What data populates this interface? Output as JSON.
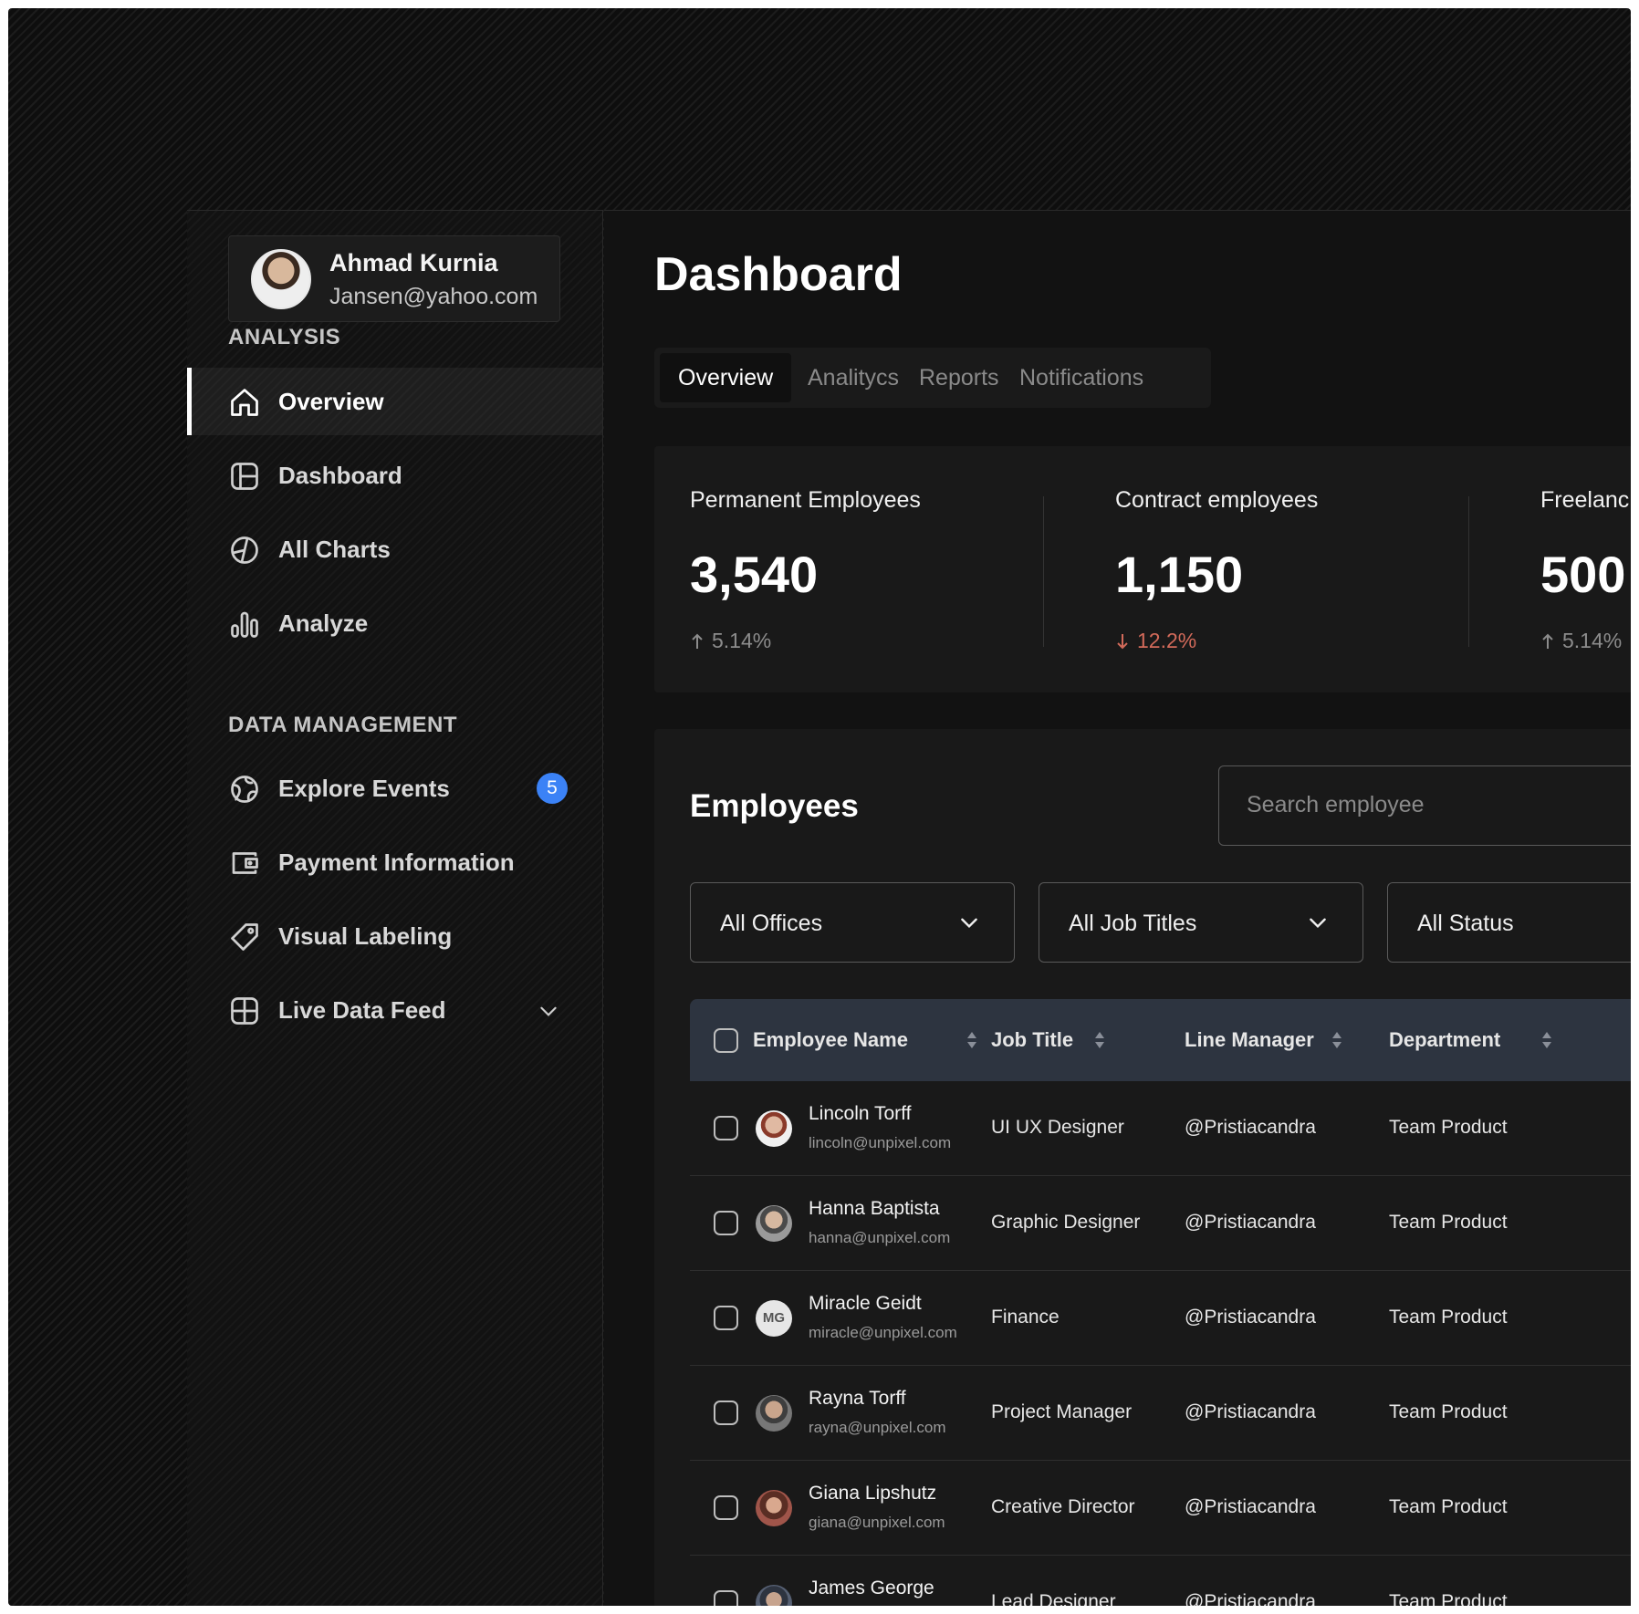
{
  "profile": {
    "name": "Ahmad Kurnia",
    "email": "Jansen@yahoo.com"
  },
  "sidebar": {
    "sections": [
      {
        "title": "ANALYSIS",
        "items": [
          {
            "label": "Overview",
            "icon": "home-icon",
            "active": true
          },
          {
            "label": "Dashboard",
            "icon": "layout-icon"
          },
          {
            "label": "All Charts",
            "icon": "pie-chart-icon"
          },
          {
            "label": "Analyze",
            "icon": "bar-chart-icon"
          }
        ]
      },
      {
        "title": "DATA MANAGEMENT",
        "items": [
          {
            "label": "Explore Events",
            "icon": "globe-icon",
            "badge": "5"
          },
          {
            "label": "Payment Information",
            "icon": "wallet-icon"
          },
          {
            "label": "Visual Labeling",
            "icon": "tag-icon"
          },
          {
            "label": "Live Data Feed",
            "icon": "grid-icon",
            "expandable": true
          }
        ]
      }
    ]
  },
  "main": {
    "title": "Dashboard",
    "tabs": [
      {
        "label": "Overview",
        "active": true
      },
      {
        "label": "Analitycs"
      },
      {
        "label": "Reports"
      },
      {
        "label": "Notifications"
      }
    ],
    "stats": [
      {
        "label": "Permanent Employees",
        "value": "3,540",
        "change": "5.14%",
        "direction": "up"
      },
      {
        "label": "Contract employees",
        "value": "1,150",
        "change": "12.2%",
        "direction": "down"
      },
      {
        "label": "Freelanc",
        "value": "500",
        "change": "5.14%",
        "direction": "up"
      }
    ],
    "employees": {
      "title": "Employees",
      "search_placeholder": "Search employee",
      "filters": [
        "All Offices",
        "All Job Titles",
        "All Status"
      ],
      "columns": [
        "Employee Name",
        "Job Title",
        "Line Manager",
        "Department"
      ],
      "rows": [
        {
          "name": "Lincoln Torff",
          "email": "lincoln@unpixel.com",
          "job": "UI UX Designer",
          "manager": "@Pristiacandra",
          "dept": "Team Product"
        },
        {
          "name": "Hanna Baptista",
          "email": "hanna@unpixel.com",
          "job": "Graphic Designer",
          "manager": "@Pristiacandra",
          "dept": "Team Product"
        },
        {
          "name": "Miracle Geidt",
          "email": "miracle@unpixel.com",
          "job": "Finance",
          "manager": "@Pristiacandra",
          "dept": "Team Product",
          "initials": "MG"
        },
        {
          "name": "Rayna Torff",
          "email": "rayna@unpixel.com",
          "job": "Project Manager",
          "manager": "@Pristiacandra",
          "dept": "Team Product"
        },
        {
          "name": "Giana Lipshutz",
          "email": "giana@unpixel.com",
          "job": "Creative Director",
          "manager": "@Pristiacandra",
          "dept": "Team Product"
        },
        {
          "name": "James George",
          "email": "",
          "job": "Lead Designer",
          "manager": "@Pristiacandra",
          "dept": "Team Product"
        }
      ]
    }
  },
  "colors": {
    "accent_badge": "#3b82f6",
    "change_down": "#d26a5a",
    "table_header": "#2d3440"
  }
}
